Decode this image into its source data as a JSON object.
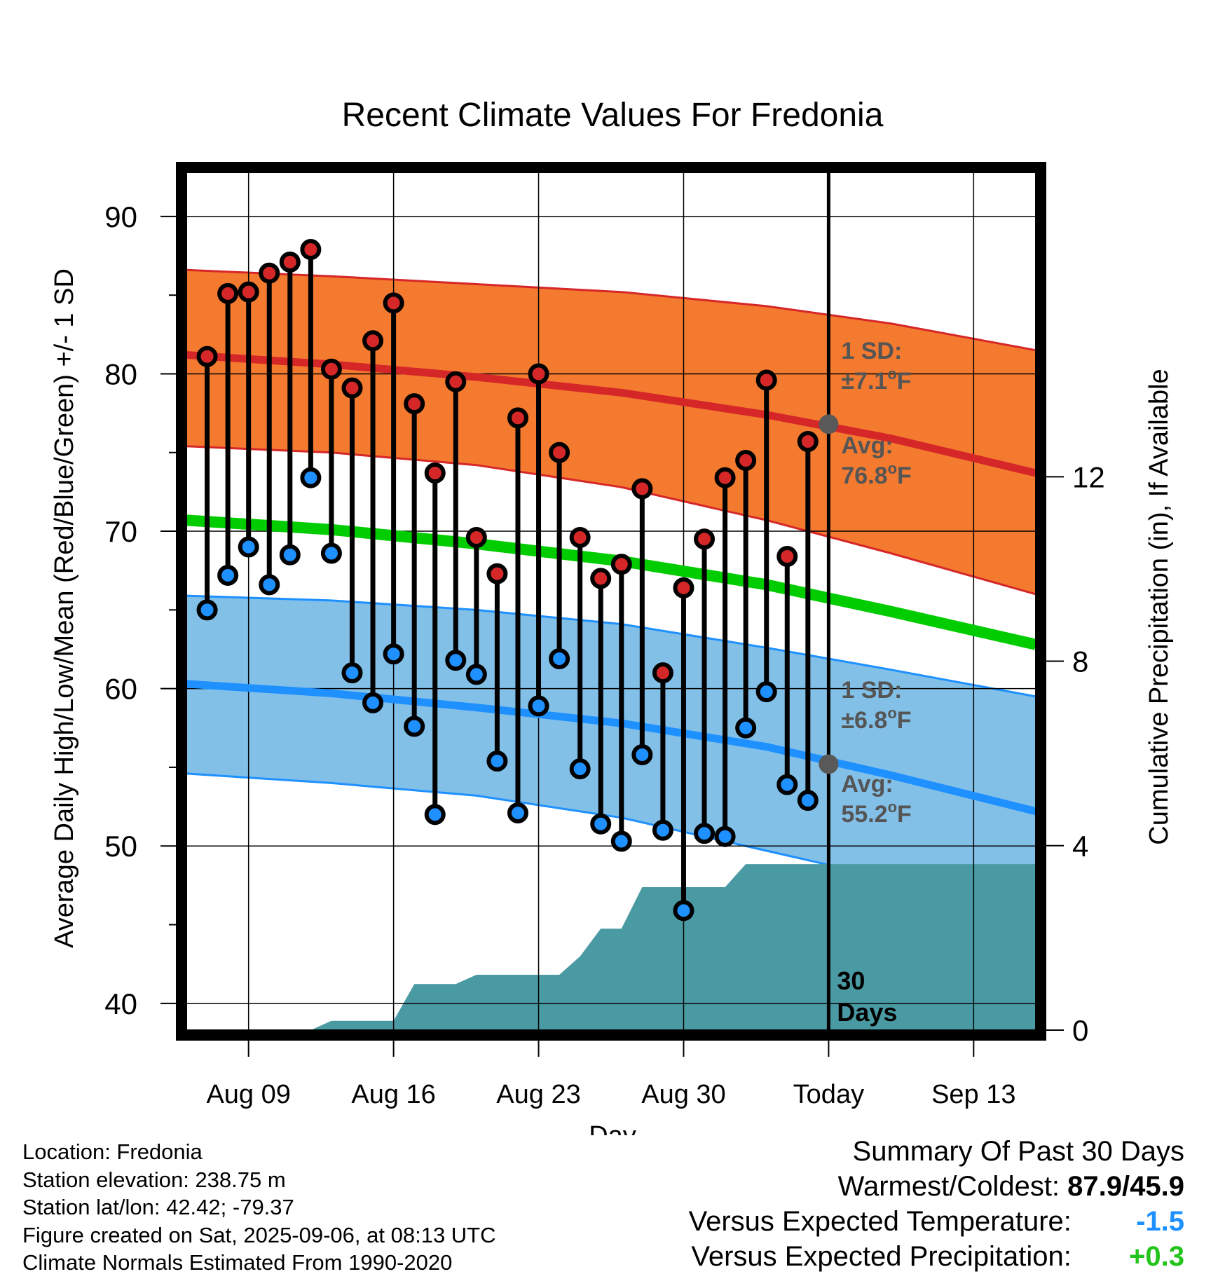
{
  "chart_data": {
    "type": "line",
    "title": "Recent Climate Values For Fredonia",
    "xlabel": "Day",
    "ylabel": "Average Daily High/Low/Mean (Red/Blue/Green) +/- 1 SD",
    "y2label": "Cumulative Precipitation (in), If Available",
    "ylim": [
      38.3,
      92.8
    ],
    "y2lim": [
      0,
      18.6
    ],
    "yticks": [
      40,
      50,
      60,
      70,
      80,
      90
    ],
    "y2ticks": [
      0,
      4,
      8,
      12
    ],
    "xlim": [
      "2025-08-06",
      "2025-09-16"
    ],
    "xticks": [
      {
        "date": "2025-08-09",
        "label": "Aug 09"
      },
      {
        "date": "2025-08-16",
        "label": "Aug 16"
      },
      {
        "date": "2025-08-23",
        "label": "Aug 23"
      },
      {
        "date": "2025-08-30",
        "label": "Aug 30"
      },
      {
        "date": "2025-09-06",
        "label": "Today"
      },
      {
        "date": "2025-09-13",
        "label": "Sep 13"
      }
    ],
    "today": "2025-09-06",
    "colors": {
      "high": "#d62728",
      "low": "#1e90ff",
      "mean": "#00cc00",
      "high_band": "#f47a30",
      "low_band": "#82c0e8",
      "precip": "#4a9aa4"
    },
    "normals": {
      "dates": [
        "2025-08-06",
        "2025-08-13",
        "2025-08-20",
        "2025-08-27",
        "2025-09-03",
        "2025-09-09",
        "2025-09-16"
      ],
      "high_mean": [
        81.2,
        80.6,
        79.8,
        78.8,
        77.4,
        75.9,
        73.7
      ],
      "high_sd_upper": [
        86.6,
        86.2,
        85.7,
        85.2,
        84.3,
        83.2,
        81.5
      ],
      "high_sd_lower": [
        75.4,
        75.0,
        74.2,
        72.8,
        70.7,
        68.6,
        66.0
      ],
      "mean": [
        70.7,
        70.1,
        69.2,
        68.1,
        66.6,
        64.9,
        62.8
      ],
      "low_mean": [
        60.3,
        59.7,
        58.8,
        57.8,
        56.3,
        54.5,
        52.2
      ],
      "low_sd_upper": [
        65.9,
        65.6,
        65.0,
        64.1,
        62.6,
        61.2,
        59.5
      ],
      "low_sd_lower": [
        54.6,
        54.0,
        53.2,
        51.8,
        49.7,
        47.9,
        45.8
      ]
    },
    "daily": {
      "dates": [
        "2025-08-07",
        "2025-08-08",
        "2025-08-09",
        "2025-08-10",
        "2025-08-11",
        "2025-08-12",
        "2025-08-13",
        "2025-08-14",
        "2025-08-15",
        "2025-08-16",
        "2025-08-17",
        "2025-08-18",
        "2025-08-19",
        "2025-08-20",
        "2025-08-21",
        "2025-08-22",
        "2025-08-23",
        "2025-08-24",
        "2025-08-25",
        "2025-08-26",
        "2025-08-27",
        "2025-08-28",
        "2025-08-29",
        "2025-08-30",
        "2025-08-31",
        "2025-09-01",
        "2025-09-02",
        "2025-09-03",
        "2025-09-04",
        "2025-09-05"
      ],
      "high": [
        81.1,
        85.1,
        85.2,
        86.4,
        87.1,
        87.9,
        80.3,
        79.1,
        82.1,
        84.5,
        78.1,
        73.7,
        79.5,
        69.6,
        67.3,
        77.2,
        80.0,
        75.0,
        69.6,
        67.0,
        67.9,
        72.7,
        61.0,
        66.4,
        69.5,
        73.4,
        74.5,
        79.6,
        68.4,
        75.7
      ],
      "low": [
        65.0,
        67.2,
        69.0,
        66.6,
        68.5,
        73.4,
        68.6,
        61.0,
        59.1,
        62.2,
        57.6,
        52.0,
        61.8,
        60.9,
        55.4,
        52.1,
        58.9,
        61.9,
        54.9,
        51.4,
        50.3,
        55.8,
        51.0,
        45.9,
        50.8,
        50.6,
        57.5,
        59.8,
        53.9,
        52.9
      ]
    },
    "precip": {
      "dates": [
        "2025-08-06",
        "2025-08-12",
        "2025-08-13",
        "2025-08-16",
        "2025-08-17",
        "2025-08-19",
        "2025-08-20",
        "2025-08-24",
        "2025-08-25",
        "2025-08-26",
        "2025-08-27",
        "2025-08-28",
        "2025-09-01",
        "2025-09-02",
        "2025-09-03",
        "2025-09-16"
      ],
      "cumulative": [
        0,
        0,
        0.2,
        0.2,
        1.0,
        1.0,
        1.2,
        1.2,
        1.6,
        2.2,
        2.2,
        3.1,
        3.1,
        3.6,
        3.6,
        3.6
      ]
    },
    "annotations": {
      "high_sd": "1 SD:",
      "high_sd_value": "±7.1",
      "high_avg": "Avg:",
      "high_avg_value": "76.8",
      "low_sd": "1 SD:",
      "low_sd_value": "±6.8",
      "low_avg": "Avg:",
      "low_avg_value": "55.2",
      "unit_sup": "o",
      "unit_letter": "F",
      "window_line1": "30",
      "window_line2": "Days"
    },
    "markers": [
      {
        "date": "2025-09-06",
        "value": 76.8
      },
      {
        "date": "2025-09-06",
        "value": 55.2
      }
    ]
  },
  "metadata": {
    "lines": [
      "Location: Fredonia",
      "Station elevation: 238.75 m",
      "Station lat/lon: 42.42; -79.37",
      "Figure created on Sat, 2025-09-06, at 08:13 UTC",
      "Climate Normals Estimated From 1990-2020"
    ]
  },
  "summary": {
    "heading": "Summary Of Past 30 Days",
    "warmest_coldest_label": "Warmest/Coldest:",
    "warmest_coldest_value": "87.9/45.9",
    "temp_label": "Versus Expected Temperature:",
    "temp_value": "-1.5",
    "precip_label": "Versus Expected Precipitation:",
    "precip_value": "+0.3"
  }
}
